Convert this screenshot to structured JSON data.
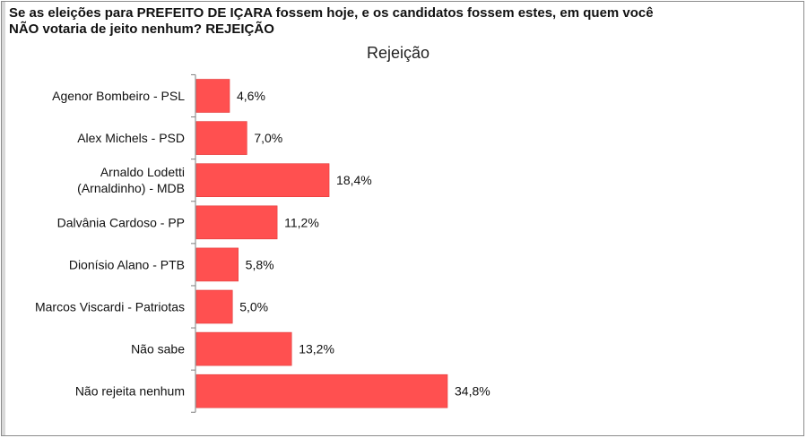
{
  "question": {
    "line1": "Se as eleições para PREFEITO DE IÇARA fossem hoje, e os candidatos fossem estes, em quem você",
    "line2": "NÃO votaria de jeito nenhum? REJEIÇÃO"
  },
  "colors": {
    "bar": "#ff5050",
    "bar_edge": "#e23a3a",
    "axis": "#7f7f7f",
    "text": "#111111"
  },
  "chart_data": {
    "type": "bar",
    "orientation": "horizontal",
    "title": "Rejeição",
    "categories": [
      [
        "Agenor Bombeiro - PSL"
      ],
      [
        "Alex Michels - PSD"
      ],
      [
        "Arnaldo Lodetti",
        "(Arnaldinho) - MDB"
      ],
      [
        "Dalvânia Cardoso - PP"
      ],
      [
        "Dionísio Alano - PTB"
      ],
      [
        "Marcos Viscardi - Patriotas"
      ],
      [
        "Não sabe"
      ],
      [
        "Não rejeita nenhum"
      ]
    ],
    "values": [
      4.6,
      7.0,
      18.4,
      11.2,
      5.8,
      5.0,
      13.2,
      34.8
    ],
    "data_labels": [
      "4,6%",
      "7,0%",
      "18,4%",
      "11,2%",
      "5,8%",
      "5,0%",
      "13,2%",
      "34,8%"
    ],
    "xlim": [
      0,
      37
    ],
    "grid": false,
    "legend": "none"
  }
}
